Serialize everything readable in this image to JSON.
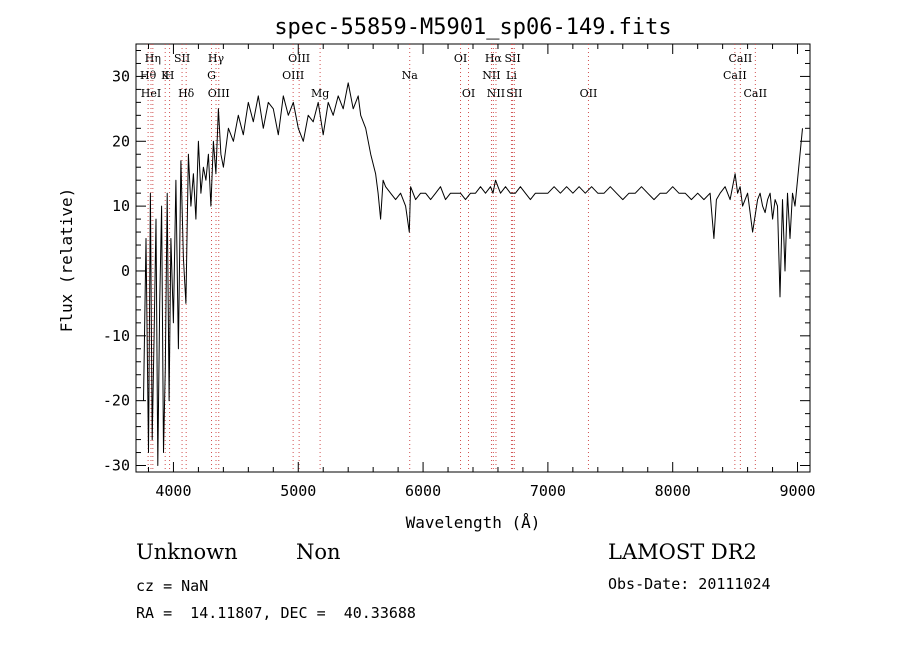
{
  "chart_data": {
    "type": "line",
    "title": "spec-55859-M5901_sp06-149.fits",
    "xlabel": "Wavelength (Å)",
    "ylabel": "Flux (relative)",
    "xlim": [
      3700,
      9100
    ],
    "ylim": [
      -31,
      35
    ],
    "x_ticks": [
      4000,
      5000,
      6000,
      7000,
      8000,
      9000
    ],
    "y_ticks": [
      -30,
      -20,
      -10,
      0,
      10,
      20,
      30
    ],
    "grid": false,
    "lines": [
      {
        "label": "Hη",
        "x": 3835,
        "row": 0
      },
      {
        "label": "Hθ",
        "x": 3797,
        "row": 1
      },
      {
        "label": "HeI",
        "x": 3820,
        "row": 2
      },
      {
        "label": "K",
        "x": 3934,
        "row": 1
      },
      {
        "label": "H",
        "x": 3969,
        "row": 1
      },
      {
        "label": "SII",
        "x": 4069,
        "row": 0
      },
      {
        "label": "Hδ",
        "x": 4102,
        "row": 2
      },
      {
        "label": "Hγ",
        "x": 4341,
        "row": 0
      },
      {
        "label": "G",
        "x": 4305,
        "row": 1
      },
      {
        "label": "OIII",
        "x": 4363,
        "row": 2
      },
      {
        "label": "OIII",
        "x": 5007,
        "row": 0
      },
      {
        "label": "OIII",
        "x": 4959,
        "row": 1
      },
      {
        "label": "Mg",
        "x": 5175,
        "row": 2
      },
      {
        "label": "Na",
        "x": 5893,
        "row": 1
      },
      {
        "label": "OI",
        "x": 6300,
        "row": 0
      },
      {
        "label": "OI",
        "x": 6364,
        "row": 2
      },
      {
        "label": "Hα",
        "x": 6563,
        "row": 0
      },
      {
        "label": "NII",
        "x": 6548,
        "row": 1
      },
      {
        "label": "NII",
        "x": 6584,
        "row": 2
      },
      {
        "label": "SII",
        "x": 6717,
        "row": 0
      },
      {
        "label": "Li",
        "x": 6708,
        "row": 1
      },
      {
        "label": "SII",
        "x": 6731,
        "row": 2
      },
      {
        "label": "OII",
        "x": 7325,
        "row": 2
      },
      {
        "label": "CaII",
        "x": 8542,
        "row": 0
      },
      {
        "label": "CaII",
        "x": 8498,
        "row": 1
      },
      {
        "label": "CaII",
        "x": 8662,
        "row": 2
      }
    ],
    "series": [
      {
        "x": [
          3760,
          3780,
          3800,
          3815,
          3830,
          3845,
          3860,
          3875,
          3890,
          3905,
          3920,
          3935,
          3950,
          3965,
          3980,
          4000,
          4020,
          4040,
          4060,
          4080,
          4100,
          4120,
          4140,
          4160,
          4180,
          4200,
          4220,
          4240,
          4260,
          4280,
          4300,
          4320,
          4340,
          4360,
          4380,
          4400,
          4440,
          4480,
          4520,
          4560,
          4600,
          4640,
          4680,
          4720,
          4760,
          4800,
          4840,
          4880,
          4920,
          4960,
          5000,
          5040,
          5080,
          5120,
          5160,
          5200,
          5240,
          5280,
          5320,
          5360,
          5400,
          5440,
          5480,
          5500,
          5540,
          5580,
          5620,
          5640,
          5660,
          5680,
          5700,
          5740,
          5780,
          5820,
          5860,
          5890,
          5900,
          5940,
          5980,
          6020,
          6060,
          6100,
          6140,
          6180,
          6220,
          6260,
          6300,
          6340,
          6380,
          6420,
          6460,
          6500,
          6540,
          6560,
          6580,
          6620,
          6660,
          6700,
          6740,
          6780,
          6820,
          6860,
          6900,
          6950,
          7000,
          7050,
          7100,
          7150,
          7200,
          7250,
          7300,
          7350,
          7400,
          7450,
          7500,
          7550,
          7600,
          7650,
          7700,
          7750,
          7800,
          7850,
          7900,
          7950,
          8000,
          8050,
          8100,
          8150,
          8200,
          8250,
          8300,
          8330,
          8350,
          8380,
          8420,
          8460,
          8500,
          8520,
          8540,
          8560,
          8600,
          8640,
          8680,
          8700,
          8720,
          8740,
          8760,
          8780,
          8800,
          8820,
          8840,
          8860,
          8880,
          8900,
          8920,
          8940,
          8960,
          8980,
          9000,
          9020,
          9040
        ],
        "y": [
          -20,
          5,
          -28,
          12,
          -26,
          -10,
          8,
          -30,
          -5,
          10,
          -28,
          -15,
          12,
          -20,
          5,
          -8,
          14,
          -12,
          17,
          2,
          -5,
          18,
          10,
          15,
          8,
          20,
          12,
          16,
          14,
          18,
          10,
          20,
          15,
          25,
          18,
          16,
          22,
          20,
          24,
          21,
          26,
          23,
          27,
          22,
          26,
          25,
          21,
          27,
          24,
          26,
          22,
          20,
          24,
          23,
          26,
          21,
          26,
          24,
          27,
          25,
          29,
          25,
          27,
          24,
          22,
          18,
          15,
          12,
          8,
          14,
          13,
          12,
          11,
          12,
          10,
          6,
          13,
          11,
          12,
          12,
          11,
          12,
          13,
          11,
          12,
          12,
          12,
          11,
          12,
          12,
          13,
          12,
          13,
          12,
          14,
          12,
          13,
          12,
          12,
          13,
          12,
          11,
          12,
          12,
          12,
          13,
          12,
          13,
          12,
          13,
          12,
          13,
          12,
          12,
          13,
          12,
          11,
          12,
          12,
          13,
          12,
          11,
          12,
          12,
          13,
          12,
          12,
          11,
          12,
          11,
          12,
          5,
          11,
          12,
          13,
          11,
          15,
          12,
          13,
          10,
          12,
          6,
          11,
          12,
          10,
          9,
          11,
          12,
          8,
          11,
          10,
          -4,
          11,
          0,
          12,
          5,
          12,
          10,
          14,
          18,
          22
        ]
      }
    ]
  },
  "info": {
    "class": "Unknown",
    "subclass": "Non",
    "survey": "LAMOST DR2",
    "cz": "cz = NaN",
    "obsdate": "Obs-Date: 20111024",
    "coords": "RA =  14.11807, DEC =  40.33688"
  }
}
